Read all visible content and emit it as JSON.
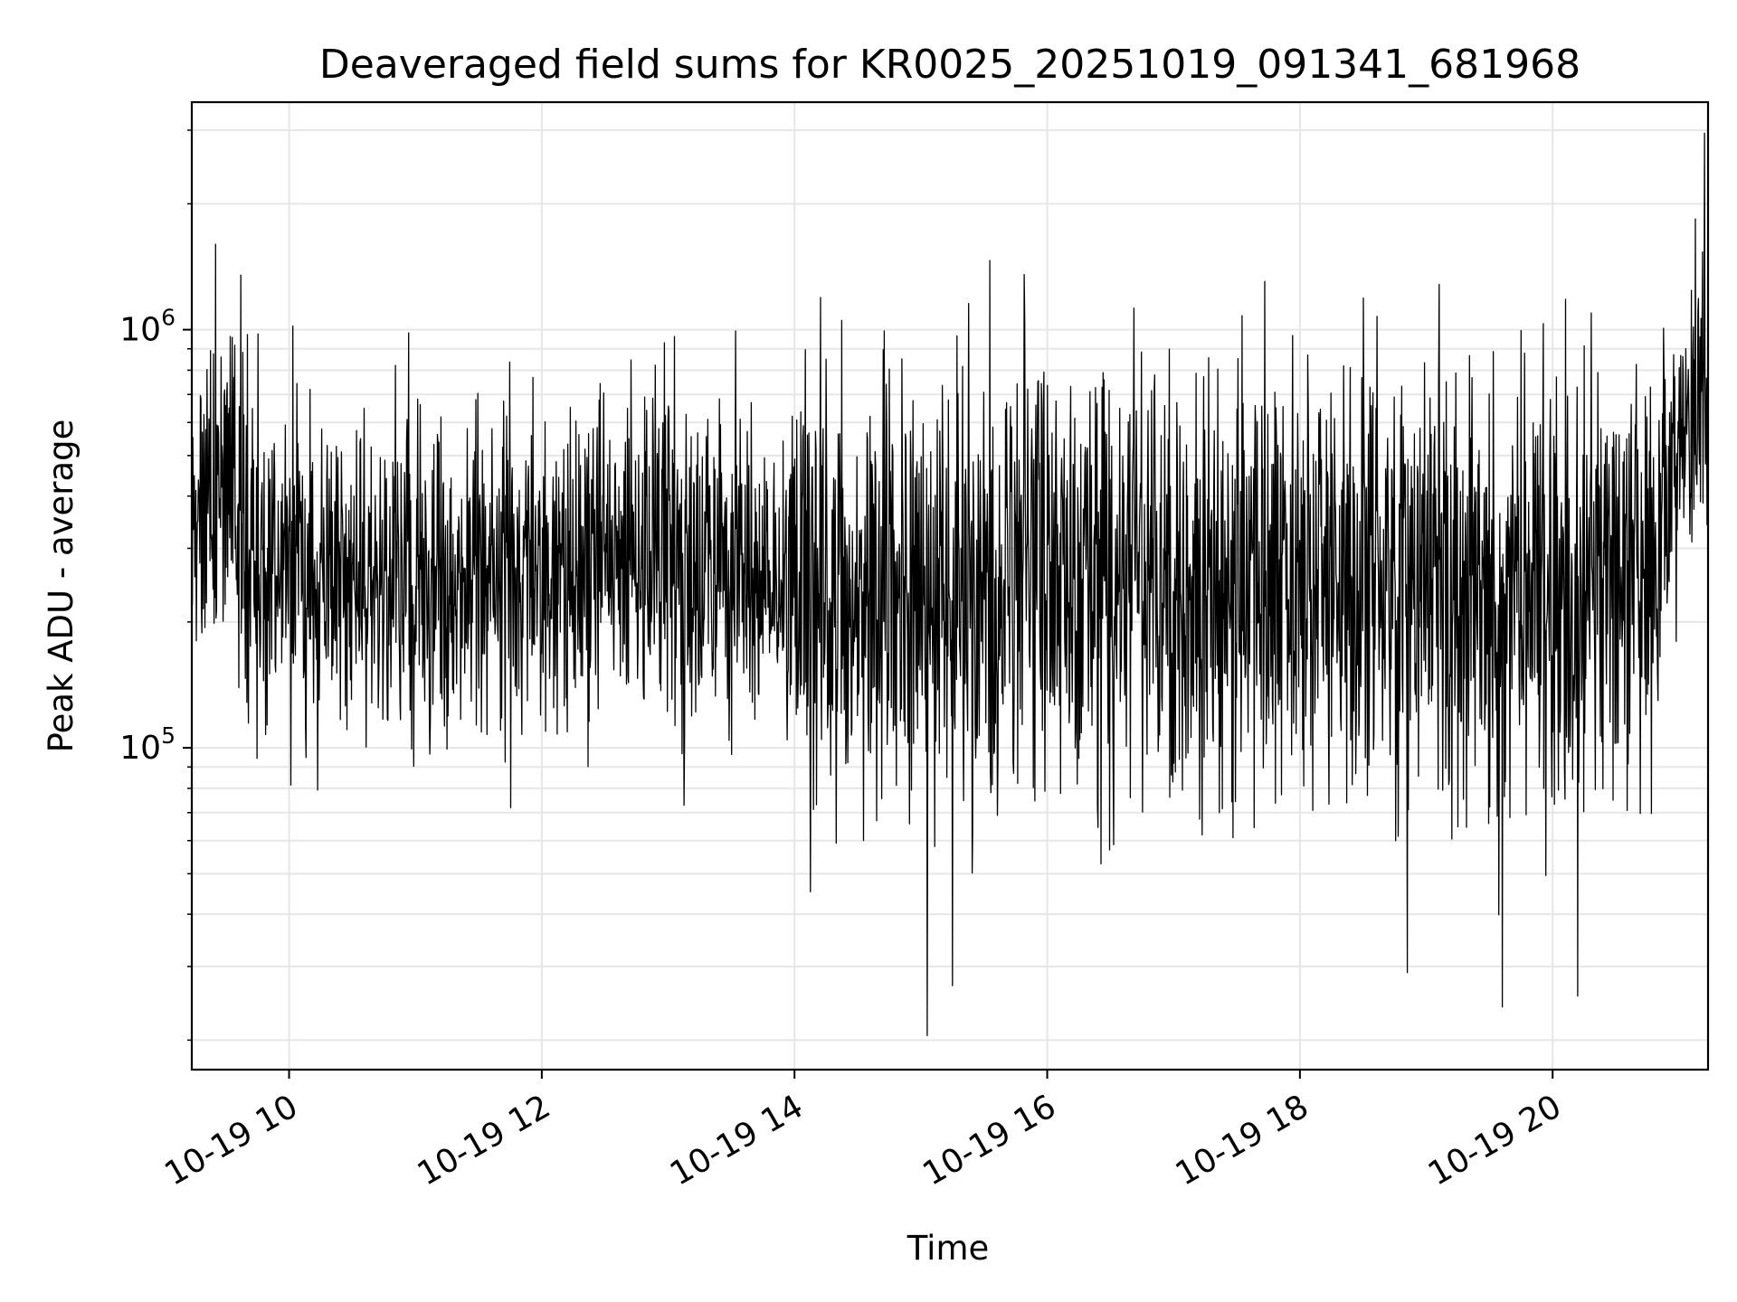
{
  "chart_data": {
    "type": "line",
    "title": "Deaveraged field sums for KR0025_20251019_091341_681968",
    "xlabel": "Time",
    "ylabel": "Peak ADU - average",
    "yscale": "log",
    "grid": true,
    "line_color": "#000000",
    "grid_color": "#e6e6e6",
    "xlim_hours": [
      9.23,
      21.23
    ],
    "ylim": [
      17000,
      3500000
    ],
    "x_ticks": [
      {
        "hour": 10,
        "label": "10-19 10"
      },
      {
        "hour": 12,
        "label": "10-19 12"
      },
      {
        "hour": 14,
        "label": "10-19 14"
      },
      {
        "hour": 16,
        "label": "10-19 16"
      },
      {
        "hour": 18,
        "label": "10-19 18"
      },
      {
        "hour": 20,
        "label": "10-19 20"
      }
    ],
    "y_ticks": [
      {
        "value": 100000,
        "base": "10",
        "exp": "5"
      },
      {
        "value": 1000000,
        "base": "10",
        "exp": "6"
      }
    ],
    "series": [
      {
        "name": "deaveraged field sums",
        "trend": [
          {
            "hour": 9.23,
            "typical": 300000
          },
          {
            "hour": 9.5,
            "typical": 480000
          },
          {
            "hour": 9.75,
            "typical": 260000
          },
          {
            "hour": 10.5,
            "typical": 250000
          },
          {
            "hour": 11.5,
            "typical": 250000
          },
          {
            "hour": 12.5,
            "typical": 270000
          },
          {
            "hour": 14.0,
            "typical": 260000
          },
          {
            "hour": 15.0,
            "typical": 220000
          },
          {
            "hour": 16.0,
            "typical": 270000
          },
          {
            "hour": 17.0,
            "typical": 250000
          },
          {
            "hour": 18.0,
            "typical": 260000
          },
          {
            "hour": 19.0,
            "typical": 250000
          },
          {
            "hour": 20.0,
            "typical": 220000
          },
          {
            "hour": 20.8,
            "typical": 280000
          },
          {
            "hour": 21.0,
            "typical": 550000
          },
          {
            "hour": 21.23,
            "typical": 650000
          }
        ],
        "spikes": [
          {
            "hour": 9.42,
            "value": 1600000
          },
          {
            "hour": 9.62,
            "value": 1350000
          },
          {
            "hour": 10.03,
            "value": 1020000
          },
          {
            "hour": 12.97,
            "value": 930000
          },
          {
            "hour": 15.05,
            "value": 20500
          },
          {
            "hour": 15.25,
            "value": 27000
          },
          {
            "hour": 18.85,
            "value": 29000
          },
          {
            "hour": 19.6,
            "value": 24000
          },
          {
            "hour": 20.2,
            "value": 25500
          },
          {
            "hour": 21.2,
            "value": 2950000
          }
        ]
      }
    ]
  }
}
